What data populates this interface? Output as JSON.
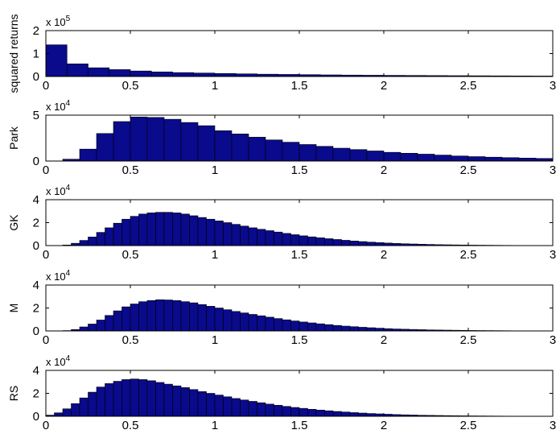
{
  "chart_data": [
    {
      "type": "bar",
      "ylabel": "squared returns",
      "multiplier_base": "x 10",
      "multiplier_exp": "5",
      "xlim": [
        0,
        3
      ],
      "ylim": [
        0,
        2
      ],
      "xticks": [
        "0",
        "0.5",
        "1",
        "1.5",
        "2",
        "2.5",
        "3"
      ],
      "yticks": [
        "0",
        "1",
        "2"
      ],
      "bin_width": 0.125,
      "bin_edges_start": 0,
      "values": [
        1.38,
        0.55,
        0.38,
        0.3,
        0.24,
        0.2,
        0.17,
        0.15,
        0.13,
        0.115,
        0.1,
        0.09,
        0.08,
        0.07,
        0.062,
        0.055,
        0.05,
        0.045,
        0.04,
        0.036,
        0.032,
        0.028,
        0.025,
        0.022
      ],
      "bar_color": "#0a0a8c"
    },
    {
      "type": "bar",
      "ylabel": "Park",
      "multiplier_base": "x 10",
      "multiplier_exp": "4",
      "xlim": [
        0,
        3
      ],
      "ylim": [
        0,
        5
      ],
      "xticks": [
        "0",
        "0.5",
        "1",
        "1.5",
        "2",
        "2.5",
        "3"
      ],
      "yticks": [
        "0",
        "5"
      ],
      "bin_width": 0.1,
      "bin_edges_start": 0,
      "values": [
        0,
        0.2,
        1.3,
        3.0,
        4.3,
        4.8,
        4.75,
        4.55,
        4.2,
        3.85,
        3.3,
        2.95,
        2.6,
        2.3,
        2.05,
        1.8,
        1.6,
        1.4,
        1.25,
        1.1,
        0.95,
        0.85,
        0.75,
        0.65,
        0.55,
        0.48,
        0.42,
        0.37,
        0.32,
        0.28
      ],
      "bar_color": "#0a0a8c"
    },
    {
      "type": "bar",
      "ylabel": "GK",
      "multiplier_base": "x 10",
      "multiplier_exp": "4",
      "xlim": [
        0,
        3
      ],
      "ylim": [
        0,
        4
      ],
      "xticks": [
        "0",
        "0.5",
        "1",
        "1.5",
        "2",
        "2.5",
        "3"
      ],
      "yticks": [
        "0",
        "2",
        "4"
      ],
      "bin_width": 0.05,
      "bin_edges_start": 0,
      "values": [
        0,
        0,
        0.05,
        0.2,
        0.45,
        0.75,
        1.15,
        1.55,
        1.95,
        2.3,
        2.55,
        2.75,
        2.85,
        2.9,
        2.9,
        2.85,
        2.75,
        2.6,
        2.45,
        2.3,
        2.15,
        2.0,
        1.85,
        1.7,
        1.55,
        1.42,
        1.3,
        1.18,
        1.06,
        0.95,
        0.85,
        0.76,
        0.68,
        0.6,
        0.53,
        0.46,
        0.4,
        0.35,
        0.3,
        0.26,
        0.22,
        0.19,
        0.16,
        0.14,
        0.12,
        0.1,
        0.08,
        0.07,
        0.06,
        0.05,
        0.04,
        0.035,
        0.03,
        0.025,
        0.02,
        0.015,
        0.012,
        0.01,
        0.008,
        0.006
      ],
      "bar_color": "#0a0a8c"
    },
    {
      "type": "bar",
      "ylabel": "M",
      "multiplier_base": "x 10",
      "multiplier_exp": "4",
      "xlim": [
        0,
        3
      ],
      "ylim": [
        0,
        4
      ],
      "xticks": [
        "0",
        "0.5",
        "1",
        "1.5",
        "2",
        "2.5",
        "3"
      ],
      "yticks": [
        "0",
        "2",
        "4"
      ],
      "bin_width": 0.05,
      "bin_edges_start": 0,
      "values": [
        0,
        0,
        0.03,
        0.12,
        0.35,
        0.6,
        0.95,
        1.35,
        1.75,
        2.1,
        2.35,
        2.55,
        2.65,
        2.72,
        2.7,
        2.65,
        2.55,
        2.45,
        2.3,
        2.15,
        2.0,
        1.85,
        1.7,
        1.57,
        1.44,
        1.32,
        1.2,
        1.08,
        0.97,
        0.87,
        0.78,
        0.7,
        0.62,
        0.55,
        0.48,
        0.42,
        0.37,
        0.32,
        0.28,
        0.24,
        0.2,
        0.17,
        0.15,
        0.13,
        0.11,
        0.09,
        0.08,
        0.07,
        0.06,
        0.05,
        0.04,
        0.035,
        0.03,
        0.025,
        0.02,
        0.015,
        0.012,
        0.01,
        0.008,
        0.006
      ],
      "bar_color": "#0a0a8c"
    },
    {
      "type": "bar",
      "ylabel": "RS",
      "multiplier_base": "x 10",
      "multiplier_exp": "4",
      "xlim": [
        0,
        3
      ],
      "ylim": [
        0,
        4
      ],
      "xticks": [
        "0",
        "0.5",
        "1",
        "1.5",
        "2",
        "2.5",
        "3"
      ],
      "yticks": [
        "0",
        "2",
        "4"
      ],
      "bin_width": 0.05,
      "bin_edges_start": 0,
      "values": [
        0.1,
        0.3,
        0.65,
        1.1,
        1.6,
        2.1,
        2.55,
        2.85,
        3.05,
        3.2,
        3.25,
        3.2,
        3.1,
        2.95,
        2.8,
        2.65,
        2.5,
        2.33,
        2.15,
        2.0,
        1.85,
        1.7,
        1.55,
        1.42,
        1.3,
        1.18,
        1.06,
        0.96,
        0.86,
        0.77,
        0.69,
        0.61,
        0.54,
        0.48,
        0.42,
        0.37,
        0.32,
        0.28,
        0.24,
        0.21,
        0.18,
        0.15,
        0.13,
        0.11,
        0.09,
        0.08,
        0.07,
        0.06,
        0.05,
        0.04,
        0.035,
        0.03,
        0.025,
        0.02,
        0.015,
        0.012,
        0.01,
        0.008,
        0.006,
        0.005
      ],
      "bar_color": "#0a0a8c"
    }
  ]
}
